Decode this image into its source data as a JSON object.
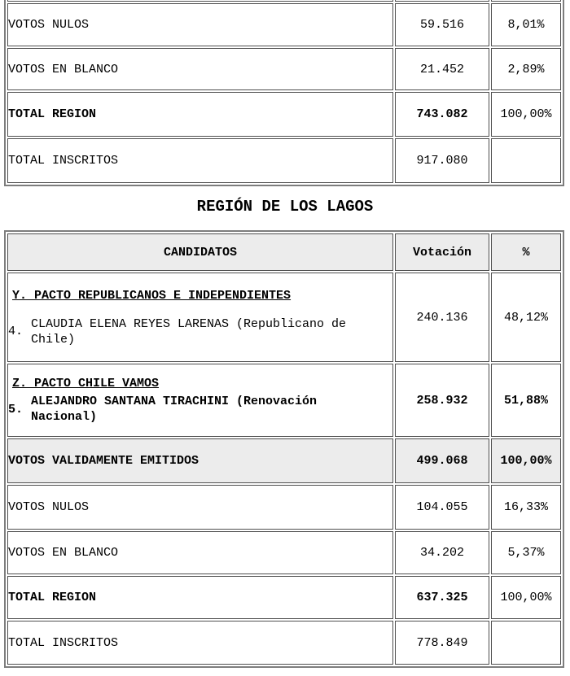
{
  "colors": {
    "header_bg": "#ececec",
    "cell_border": "#4f4f4f",
    "outer_border": "#7d7d7d"
  },
  "section_title": "REGIÓN DE LOS LAGOS",
  "table1": {
    "rows": [
      {
        "label": "VOTOS NULOS",
        "votacion": "59.516",
        "pct": "8,01%"
      },
      {
        "label": "VOTOS EN BLANCO",
        "votacion": "21.452",
        "pct": "2,89%"
      },
      {
        "label": "TOTAL REGION",
        "votacion": "743.082",
        "pct": "100,00%"
      },
      {
        "label": "TOTAL INSCRITOS",
        "votacion": "917.080",
        "pct": ""
      }
    ]
  },
  "table2": {
    "headers": {
      "candidatos": "CANDIDATOS",
      "votacion": "Votación",
      "pct": "%"
    },
    "candidate_rows": [
      {
        "pacto": "Y. PACTO REPUBLICANOS E INDEPENDIENTES",
        "num": "4.",
        "name": "CLAUDIA ELENA REYES LARENAS (Republicano de Chile)",
        "votacion": "240.136",
        "pct": "48,12%"
      },
      {
        "pacto": "Z. PACTO CHILE VAMOS",
        "num": "5.",
        "name": "ALEJANDRO SANTANA TIRACHINI (Renovación Nacional)",
        "votacion": "258.932",
        "pct": "51,88%"
      }
    ],
    "summary_rows": [
      {
        "label": "VOTOS VALIDAMENTE EMITIDOS",
        "votacion": "499.068",
        "pct": "100,00%"
      },
      {
        "label": "VOTOS NULOS",
        "votacion": "104.055",
        "pct": "16,33%"
      },
      {
        "label": "VOTOS EN BLANCO",
        "votacion": "34.202",
        "pct": "5,37%"
      },
      {
        "label": "TOTAL REGION",
        "votacion": "637.325",
        "pct": "100,00%"
      },
      {
        "label": "TOTAL INSCRITOS",
        "votacion": "778.849",
        "pct": ""
      }
    ]
  }
}
